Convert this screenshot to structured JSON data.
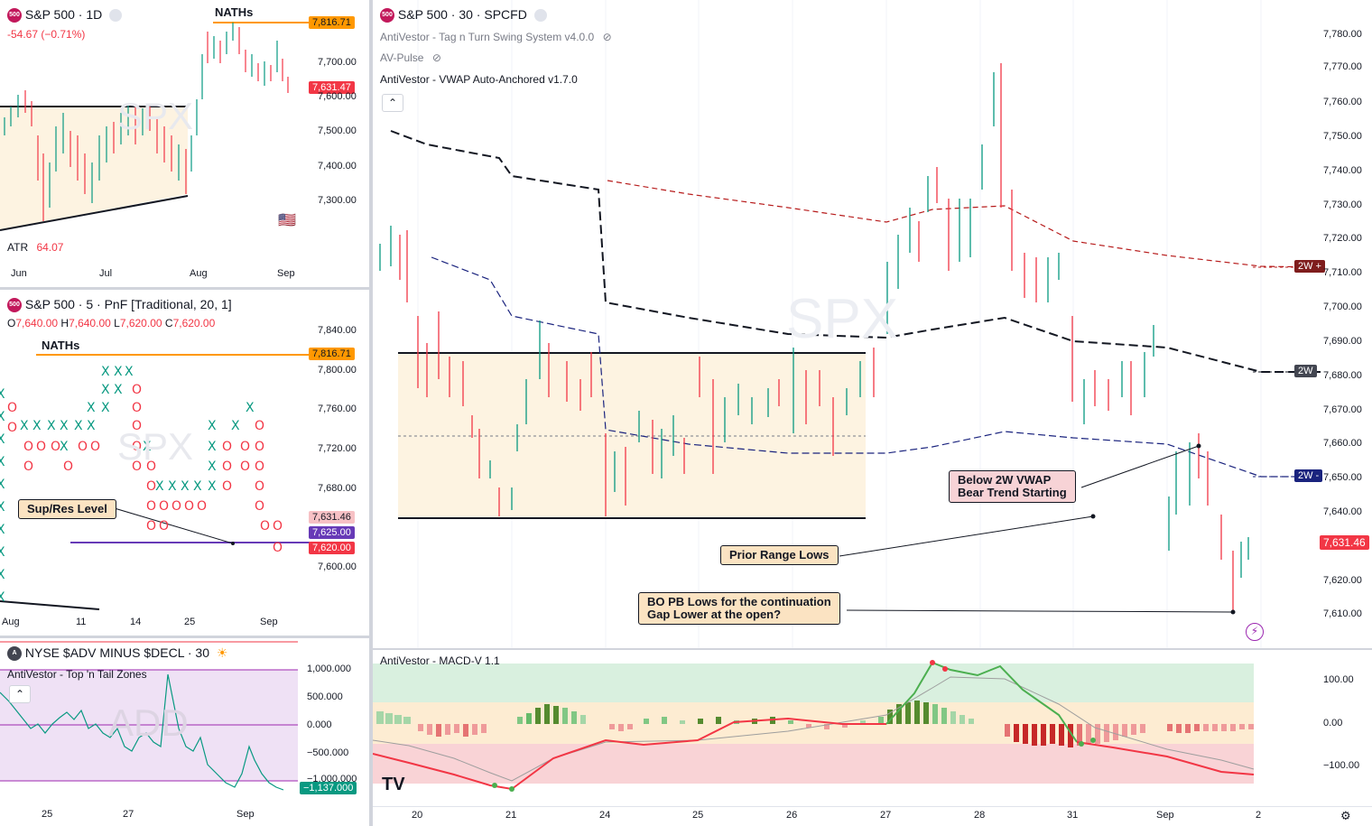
{
  "daily": {
    "title": "S&P 500 · 1D",
    "change": "-54.67 (−0.71%)",
    "naths": "NATHs",
    "price_tags": [
      "7,816.71",
      "7,631.47"
    ],
    "axis": [
      "7,700.00",
      "7,600.00",
      "7,500.00",
      "7,400.00",
      "7,300.00"
    ],
    "atr_label": "ATR",
    "atr_value": "64.07",
    "x_labels": [
      "Jun",
      "Jul",
      "Aug",
      "Sep"
    ],
    "watermark": "SPX"
  },
  "pnf": {
    "title": "S&P 500 · 5 · PnF [Traditional, 20, 1]",
    "ohlc": {
      "o": "O",
      "o_val": "7,640.00",
      "h": "H",
      "h_val": "7,640.00",
      "l": "L",
      "l_val": "7,620.00",
      "c": "C",
      "c_val": "7,620.00"
    },
    "naths": "NATHs",
    "annotation": "Sup/Res Level",
    "axis": [
      "7,840.00",
      "7,800.00",
      "7,760.00",
      "7,720.00",
      "7,680.00",
      "7,600.00"
    ],
    "price_tags": [
      "7,816.71",
      "7,631.46",
      "7,625.00",
      "7,620.00"
    ],
    "x_labels": [
      "Aug",
      "11",
      "14",
      "25",
      "Sep"
    ],
    "watermark": "SPX"
  },
  "adv": {
    "title": "NYSE $ADV MINUS $DECL · 30",
    "indicator": "AntiVestor - Top 'n Tail Zones",
    "axis": [
      "1,000.000",
      "500.000",
      "0.000",
      "−500.000",
      "−1,000.000"
    ],
    "price_tag": "−1,137.000",
    "x_labels": [
      "25",
      "27",
      "Sep"
    ],
    "watermark": "ADD"
  },
  "main": {
    "title": "S&P 500 · 30 · SPCFD",
    "indicators": [
      "AntiVestor - Tag n Turn Swing System v4.0.0",
      "AV-Pulse",
      "AntiVestor - VWAP Auto-Anchored v1.7.0"
    ],
    "watermark": "SPX",
    "axis": [
      "7,780.00",
      "7,770.00",
      "7,760.00",
      "7,750.00",
      "7,740.00",
      "7,730.00",
      "7,720.00",
      "7,710.00",
      "7,700.00",
      "7,690.00",
      "7,680.00",
      "7,670.00",
      "7,660.00",
      "7,650.00",
      "7,640.00",
      "7,620.00",
      "7,610.00"
    ],
    "vwap_tags": [
      "2W +",
      "2W",
      "2W -"
    ],
    "price_tag": "7,631.46",
    "annotations": [
      "Below 2W VWAP",
      "Bear Trend Starting",
      "Prior Range Lows",
      "BO PB Lows for the continuation",
      "Gap Lower at the open?"
    ],
    "x_labels": [
      "20",
      "21",
      "24",
      "25",
      "26",
      "27",
      "28",
      "31",
      "Sep",
      "2"
    ]
  },
  "macd": {
    "title": "AntiVestor - MACD-V 1.1",
    "axis": [
      "100.00",
      "0.00",
      "−100.00"
    ]
  },
  "colors": {
    "orange": "#ff9800",
    "red": "#f23645",
    "green": "#089981",
    "purple": "#673ab7",
    "navy": "#1a237e"
  }
}
